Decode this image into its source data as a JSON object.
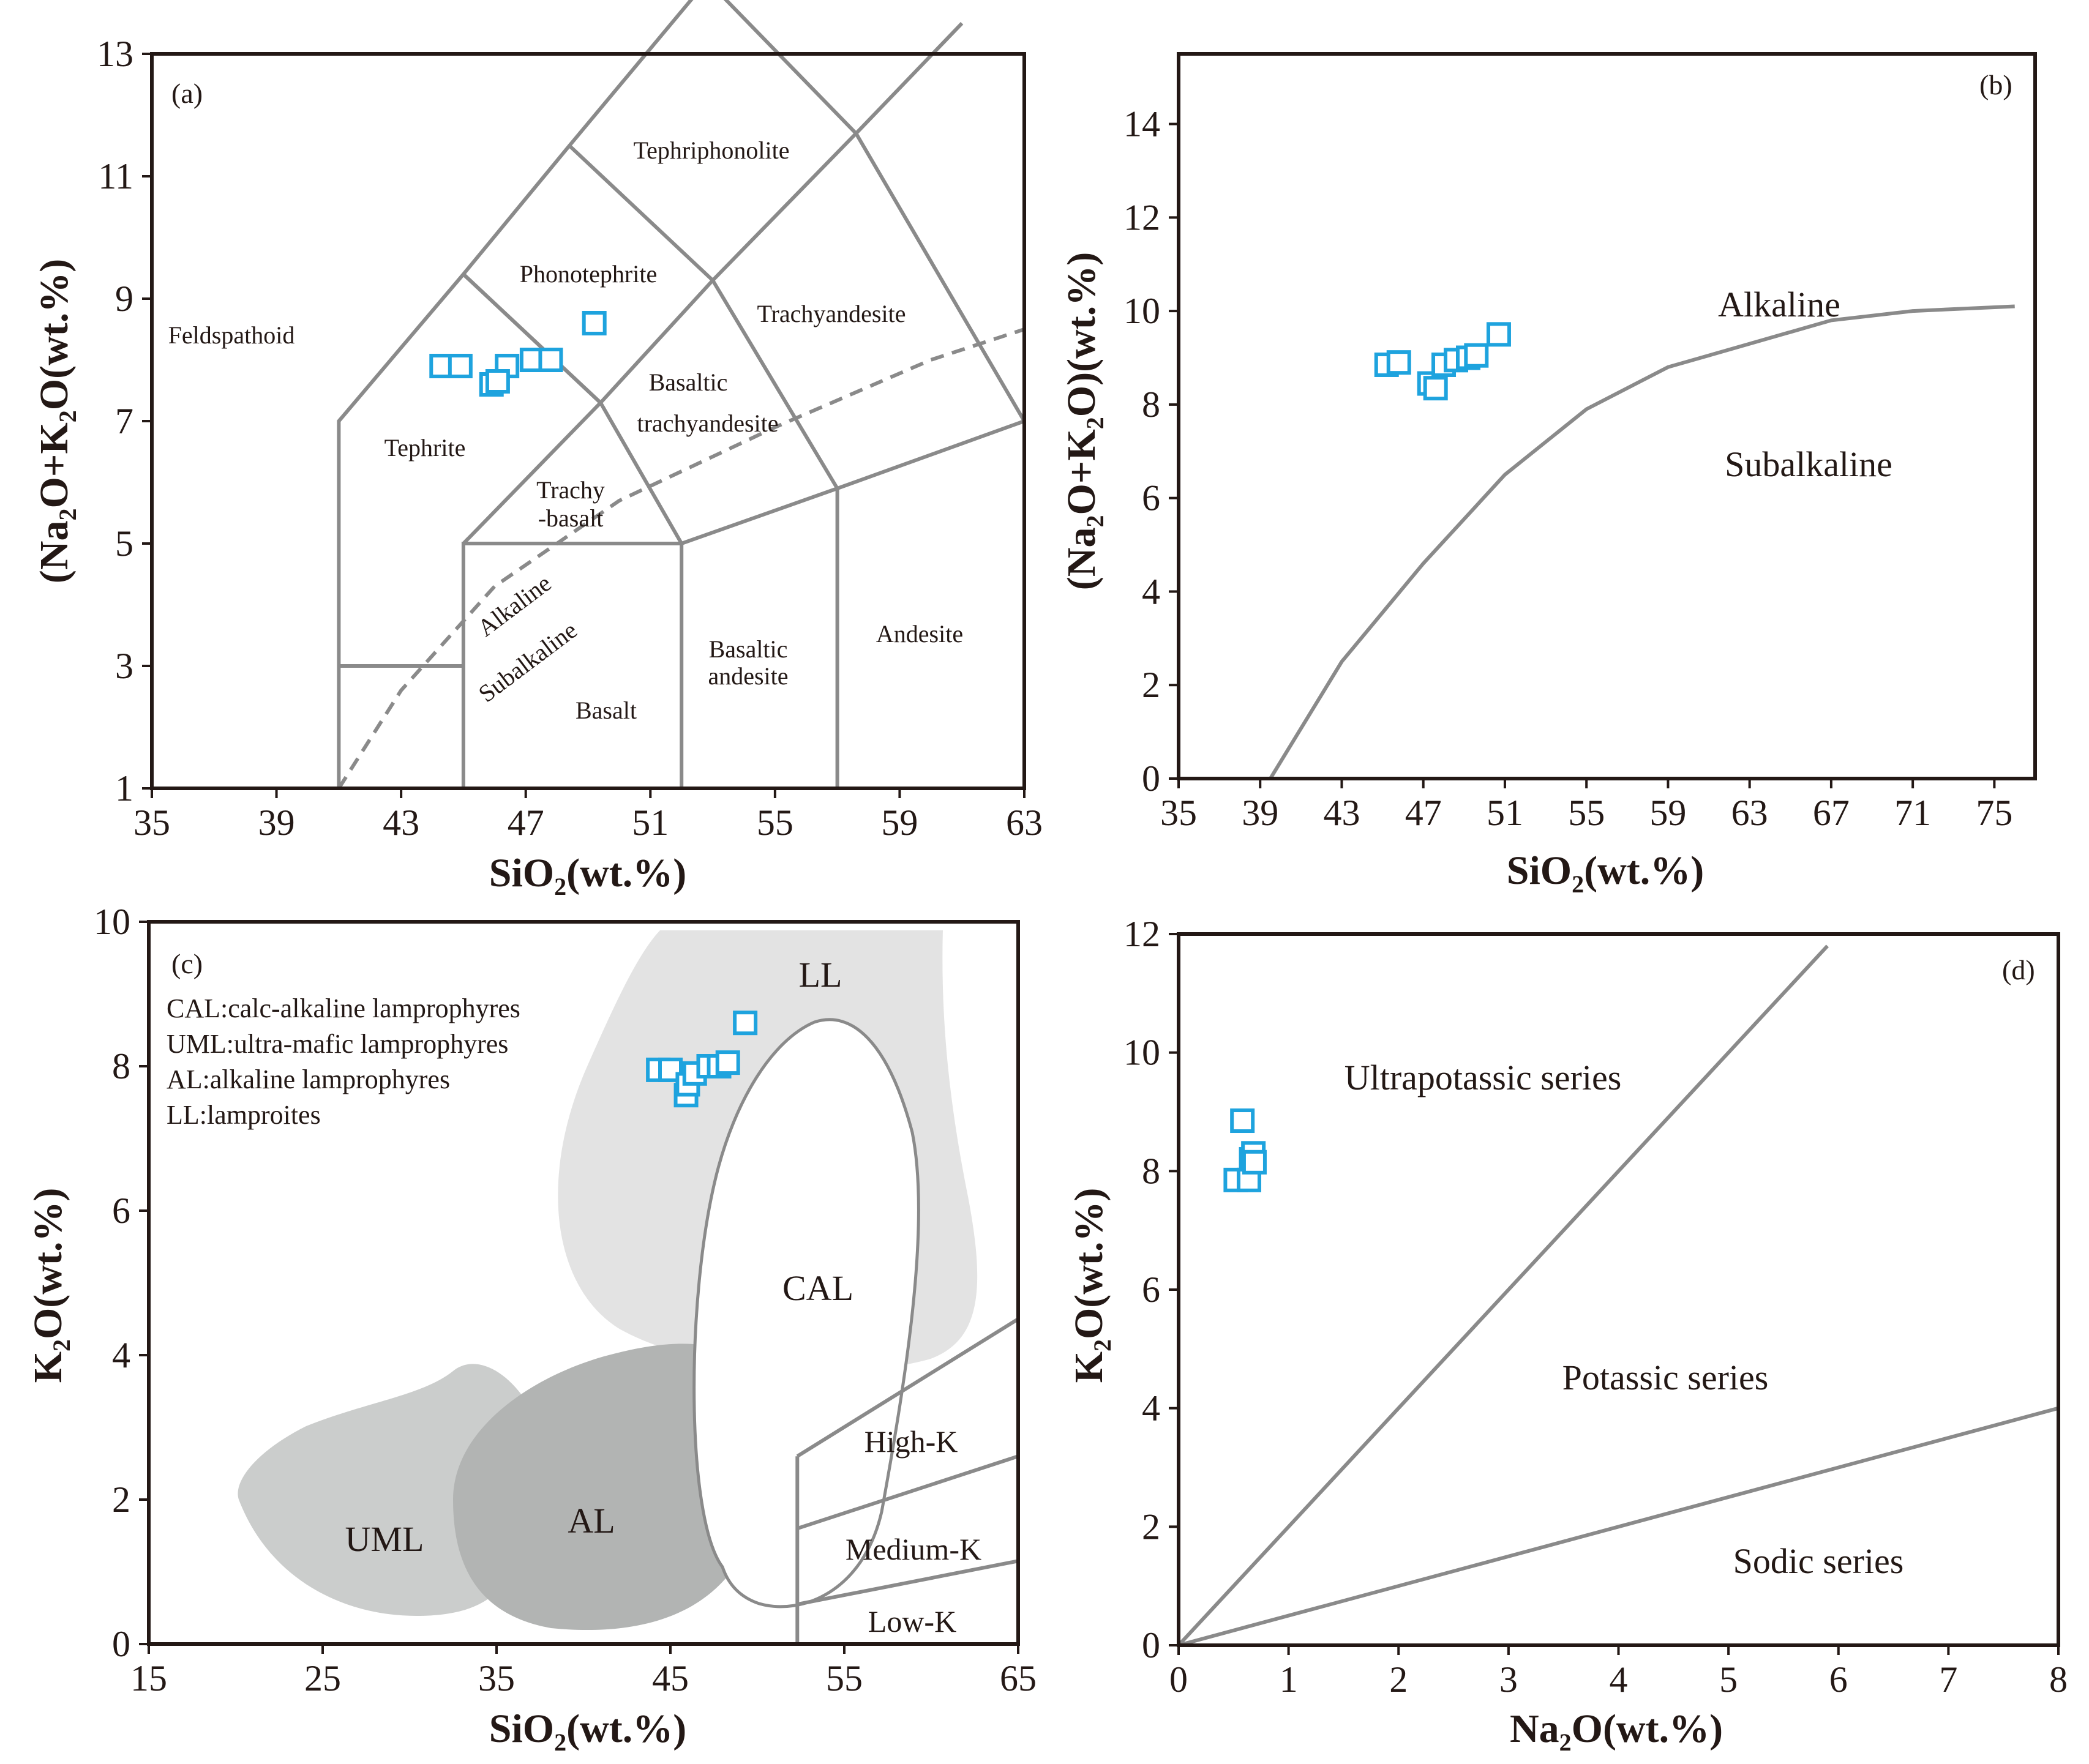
{
  "colors": {
    "axis": "#231815",
    "boundary": "#8a8a8a",
    "sample": "#1ea3de",
    "ll_field": "#e3e3e3",
    "uml_field": "#cbcdcc",
    "al_field": "#b2b4b3"
  },
  "chart_data": [
    {
      "id": "a",
      "type": "scatter",
      "panel_label": "(a)",
      "xlabel": "SiO2(wt.%)",
      "ylabel": "(Na2O+K2O(wt.%)",
      "xlim": [
        35,
        63
      ],
      "ylim": [
        1,
        13
      ],
      "xticks": [
        35,
        39,
        43,
        47,
        51,
        55,
        59,
        63
      ],
      "yticks": [
        1,
        3,
        5,
        7,
        9,
        11,
        13
      ],
      "fields": [
        "Feldspathoid",
        "Tephriphonolite",
        "Phonotephrite",
        "Trachyandesite",
        "Basaltic",
        "trachyandesite",
        "Tephrite",
        "Trachy",
        "-basalt",
        "Alkaline",
        "Subalkaline",
        "Basaltic",
        "andesite",
        "Andesite",
        "Basalt"
      ],
      "points": [
        [
          44.3,
          7.9
        ],
        [
          44.9,
          7.9
        ],
        [
          45.9,
          7.6
        ],
        [
          46.4,
          7.9
        ],
        [
          46.1,
          7.65
        ],
        [
          47.2,
          8.0
        ],
        [
          47.8,
          8.0
        ],
        [
          49.2,
          8.6
        ]
      ]
    },
    {
      "id": "b",
      "type": "scatter",
      "panel_label": "(b)",
      "xlabel": "SiO2(wt.%)",
      "ylabel": "(Na2O+K2O)(wt.%)",
      "xlim": [
        35,
        77
      ],
      "ylim": [
        0,
        15.5
      ],
      "xticks": [
        35,
        39,
        43,
        47,
        51,
        55,
        59,
        63,
        67,
        71,
        75
      ],
      "yticks": [
        0,
        2,
        4,
        6,
        8,
        10,
        12,
        14
      ],
      "fields": [
        "Alkaline",
        "Subalkaline"
      ],
      "points": [
        [
          45.2,
          8.85
        ],
        [
          45.8,
          8.9
        ],
        [
          47.3,
          8.45
        ],
        [
          47.6,
          8.35
        ],
        [
          48.0,
          8.85
        ],
        [
          48.6,
          8.95
        ],
        [
          49.2,
          9.0
        ],
        [
          49.6,
          9.05
        ],
        [
          50.7,
          9.5
        ]
      ]
    },
    {
      "id": "c",
      "type": "scatter",
      "panel_label": "(c)",
      "xlabel": "SiO2(wt.%)",
      "ylabel": "K2O(wt.%)",
      "xlim": [
        15,
        65
      ],
      "ylim": [
        0,
        10
      ],
      "xticks": [
        15,
        25,
        35,
        45,
        55,
        65
      ],
      "yticks": [
        0,
        2,
        4,
        6,
        8,
        10
      ],
      "fields": [
        "LL",
        "CAL",
        "UML",
        "AL",
        "High-K",
        "Medium-K",
        "Low-K"
      ],
      "legend": [
        "CAL:calc-alkaline lamprophyres",
        "UML:ultra-mafic lamprophyres",
        "AL:alkaline lamprophyres",
        "LL:lamproites"
      ],
      "points": [
        [
          44.3,
          7.95
        ],
        [
          45.0,
          7.95
        ],
        [
          45.9,
          7.6
        ],
        [
          46.0,
          7.75
        ],
        [
          46.4,
          7.9
        ],
        [
          47.2,
          8.0
        ],
        [
          47.8,
          8.0
        ],
        [
          48.3,
          8.05
        ],
        [
          49.3,
          8.6
        ]
      ]
    },
    {
      "id": "d",
      "type": "scatter",
      "panel_label": "(d)",
      "xlabel": "Na2O(wt.%)",
      "ylabel": "K2O(wt.%)",
      "xlim": [
        0,
        8
      ],
      "ylim": [
        0,
        12
      ],
      "xticks": [
        0,
        1,
        2,
        3,
        4,
        5,
        6,
        7,
        8
      ],
      "yticks": [
        0,
        2,
        4,
        6,
        8,
        10,
        12
      ],
      "fields": [
        "Ultrapotassic series",
        "Potassic series",
        "Sodic series"
      ],
      "points": [
        [
          0.58,
          8.85
        ],
        [
          0.52,
          7.85
        ],
        [
          0.64,
          7.85
        ],
        [
          0.66,
          8.2
        ],
        [
          0.68,
          8.3
        ],
        [
          0.69,
          8.15
        ]
      ]
    }
  ]
}
